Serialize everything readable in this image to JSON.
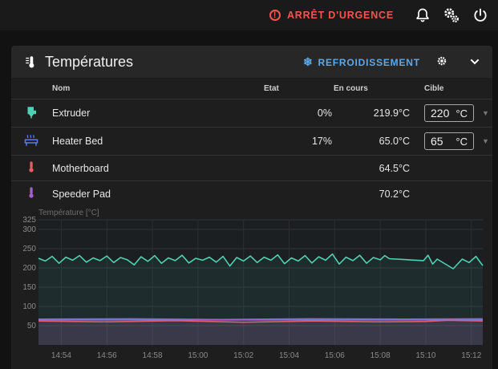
{
  "topbar": {
    "emergency_label": "ARRÊT D'URGENCE",
    "colors": {
      "emergency": "#f4554f"
    }
  },
  "panel": {
    "title": "Températures",
    "cooldown_label": "REFROIDISSEMENT",
    "colors": {
      "cooldown": "#5fa8e8"
    }
  },
  "table": {
    "headers": {
      "name": "Nom",
      "state": "Etat",
      "current": "En cours",
      "target": "Cible"
    },
    "rows": [
      {
        "icon": "extruder-icon",
        "name": "Extruder",
        "state": "0%",
        "current": "219.9°C",
        "target": "220",
        "unit": "°C",
        "color": "#4fd1b5"
      },
      {
        "icon": "heater-bed-icon",
        "name": "Heater Bed",
        "state": "17%",
        "current": "65.0°C",
        "target": "65",
        "unit": "°C",
        "color": "#5a7fe0"
      },
      {
        "icon": "thermometer-icon",
        "name": "Motherboard",
        "state": "",
        "current": "64.5°C",
        "target": "",
        "unit": "",
        "color": "#e06060"
      },
      {
        "icon": "thermometer-icon",
        "name": "Speeder Pad",
        "state": "",
        "current": "70.2°C",
        "target": "",
        "unit": "",
        "color": "#a560c8"
      }
    ]
  },
  "chart_data": {
    "type": "line",
    "ylabel": "Température [°C]",
    "y_ticks": [
      50,
      100,
      150,
      200,
      250,
      300,
      325
    ],
    "ylim": [
      0,
      325
    ],
    "x_tick_labels": [
      "14:54",
      "14:56",
      "14:58",
      "15:00",
      "15:02",
      "15:04",
      "15:06",
      "15:08",
      "15:10",
      "15:12"
    ],
    "x_range_minutes": [
      0,
      19.5
    ],
    "x_tick_minutes": [
      1,
      3,
      5,
      7,
      9,
      11,
      13,
      15,
      17,
      19
    ],
    "grid": true,
    "series": [
      {
        "color": "#4fd1b5",
        "points": [
          [
            0,
            225
          ],
          [
            0.3,
            218
          ],
          [
            0.6,
            230
          ],
          [
            0.9,
            212
          ],
          [
            1.2,
            228
          ],
          [
            1.5,
            220
          ],
          [
            1.8,
            232
          ],
          [
            2.1,
            215
          ],
          [
            2.4,
            226
          ],
          [
            2.7,
            219
          ],
          [
            3.0,
            231
          ],
          [
            3.3,
            214
          ],
          [
            3.6,
            227
          ],
          [
            3.9,
            221
          ],
          [
            4.2,
            208
          ],
          [
            4.5,
            229
          ],
          [
            4.8,
            217
          ],
          [
            5.1,
            232
          ],
          [
            5.4,
            212
          ],
          [
            5.7,
            226
          ],
          [
            6.0,
            219
          ],
          [
            6.3,
            233
          ],
          [
            6.6,
            213
          ],
          [
            6.9,
            225
          ],
          [
            7.2,
            220
          ],
          [
            7.5,
            228
          ],
          [
            7.8,
            215
          ],
          [
            8.1,
            230
          ],
          [
            8.4,
            205
          ],
          [
            8.7,
            227
          ],
          [
            9.0,
            218
          ],
          [
            9.3,
            231
          ],
          [
            9.6,
            214
          ],
          [
            9.9,
            228
          ],
          [
            10.2,
            220
          ],
          [
            10.5,
            234
          ],
          [
            10.8,
            211
          ],
          [
            11.1,
            226
          ],
          [
            11.4,
            218
          ],
          [
            11.7,
            232
          ],
          [
            12.0,
            213
          ],
          [
            12.3,
            229
          ],
          [
            12.6,
            220
          ],
          [
            12.9,
            236
          ],
          [
            13.2,
            210
          ],
          [
            13.5,
            228
          ],
          [
            13.8,
            219
          ],
          [
            14.1,
            233
          ],
          [
            14.4,
            212
          ],
          [
            14.7,
            227
          ],
          [
            15.0,
            221
          ],
          [
            15.2,
            232
          ],
          [
            15.4,
            224
          ],
          [
            16.9,
            219
          ],
          [
            17.1,
            233
          ],
          [
            17.3,
            210
          ],
          [
            17.5,
            223
          ],
          [
            18.2,
            198
          ],
          [
            18.6,
            223
          ],
          [
            18.9,
            214
          ],
          [
            19.2,
            230
          ],
          [
            19.5,
            206
          ]
        ]
      },
      {
        "color": "#5a7fe0",
        "points": [
          [
            0,
            65
          ],
          [
            19.5,
            65
          ]
        ]
      },
      {
        "color": "#e06060",
        "points": [
          [
            0,
            62
          ],
          [
            3,
            60
          ],
          [
            6,
            63
          ],
          [
            9,
            59
          ],
          [
            12,
            62
          ],
          [
            15,
            60
          ],
          [
            17,
            61
          ],
          [
            18,
            64
          ],
          [
            19.5,
            62
          ]
        ]
      },
      {
        "color": "#a560c8",
        "points": [
          [
            0,
            67
          ],
          [
            4,
            68
          ],
          [
            8,
            66
          ],
          [
            12,
            68
          ],
          [
            16,
            67
          ],
          [
            19.5,
            68
          ]
        ]
      }
    ]
  }
}
